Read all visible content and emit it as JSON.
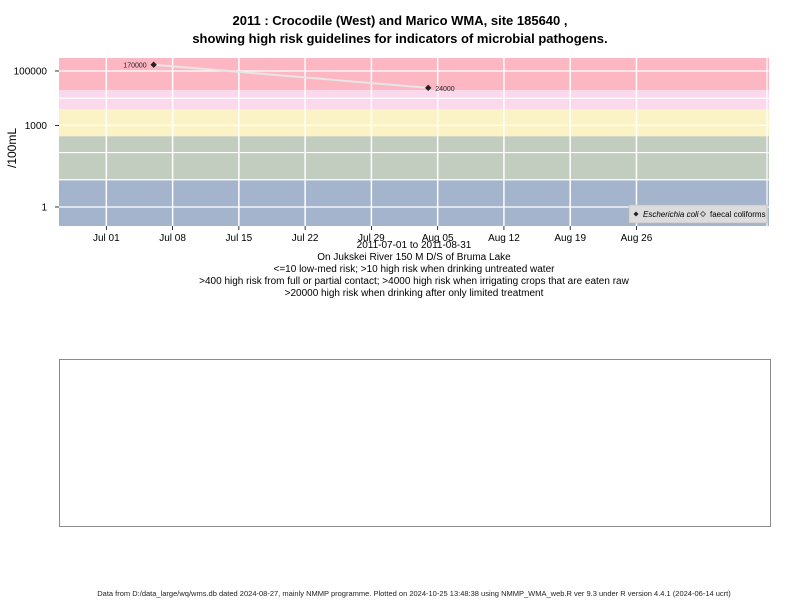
{
  "title": {
    "line1": "2011 : Crocodile (West) and Marico WMA, site 185640 ,",
    "line2": "showing high risk guidelines for indicators of microbial pathogens."
  },
  "chart_data": {
    "type": "line",
    "ylabel": "/100mL",
    "yscale": "log",
    "ylim": [
      0.2,
      300000
    ],
    "yticks": [
      1,
      1000,
      100000
    ],
    "ytick_labels": [
      "1",
      "1000",
      "100000"
    ],
    "xlim": [
      "2011-06-26",
      "2011-09-09"
    ],
    "xticks": [
      "2011-07-01",
      "2011-07-08",
      "2011-07-15",
      "2011-07-22",
      "2011-07-29",
      "2011-08-05",
      "2011-08-12",
      "2011-08-19",
      "2011-08-26"
    ],
    "xtick_labels": [
      "Jul 01",
      "Jul 08",
      "Jul 15",
      "Jul 22",
      "Jul 29",
      "Aug 05",
      "Aug 12",
      "Aug 19",
      "Aug 26"
    ],
    "grid": true,
    "bands": [
      {
        "from": 0.2,
        "to": 10,
        "color": "#a3b4cc"
      },
      {
        "from": 10,
        "to": 400,
        "color": "#c2cdc0"
      },
      {
        "from": 400,
        "to": 4000,
        "color": "#fbf3c6"
      },
      {
        "from": 4000,
        "to": 20000,
        "color": "#fbd9ec"
      },
      {
        "from": 20000,
        "to": 300000,
        "color": "#fdb7c2"
      }
    ],
    "series": [
      {
        "name": "Escherichia coli",
        "marker": "filled-diamond",
        "x": [
          "2011-07-06",
          "2011-08-04"
        ],
        "y": [
          170000,
          24000
        ],
        "labels": [
          "170000",
          "24000"
        ]
      },
      {
        "name": "faecal coliforms",
        "marker": "open-diamond",
        "x": [],
        "y": []
      }
    ],
    "legend": {
      "placement": "bottom-right"
    },
    "colors": {
      "line": "#e6e6e6",
      "marker": "#222222",
      "grid": "#ffffff"
    }
  },
  "captions": {
    "date_range": "2011-07-01 to 2011-08-31",
    "location": "On Jukskei River 150 M D/S of Bruma Lake",
    "risk1": "<=10 low-med risk; >10 high risk when drinking untreated water",
    "risk2": ">400 high risk from full or partial contact; >4000 high risk when irrigating crops that are eaten raw",
    "risk3": ">20000 high risk when drinking after only limited treatment"
  },
  "footer": "Data from D:/data_large/wq/wms.db dated 2024-08-27, mainly NMMP programme. Plotted on 2024-10-25 13:48:38 using NMMP_WMA_web.R ver 9.3 under R version 4.4.1 (2024-06-14 ucrt)"
}
